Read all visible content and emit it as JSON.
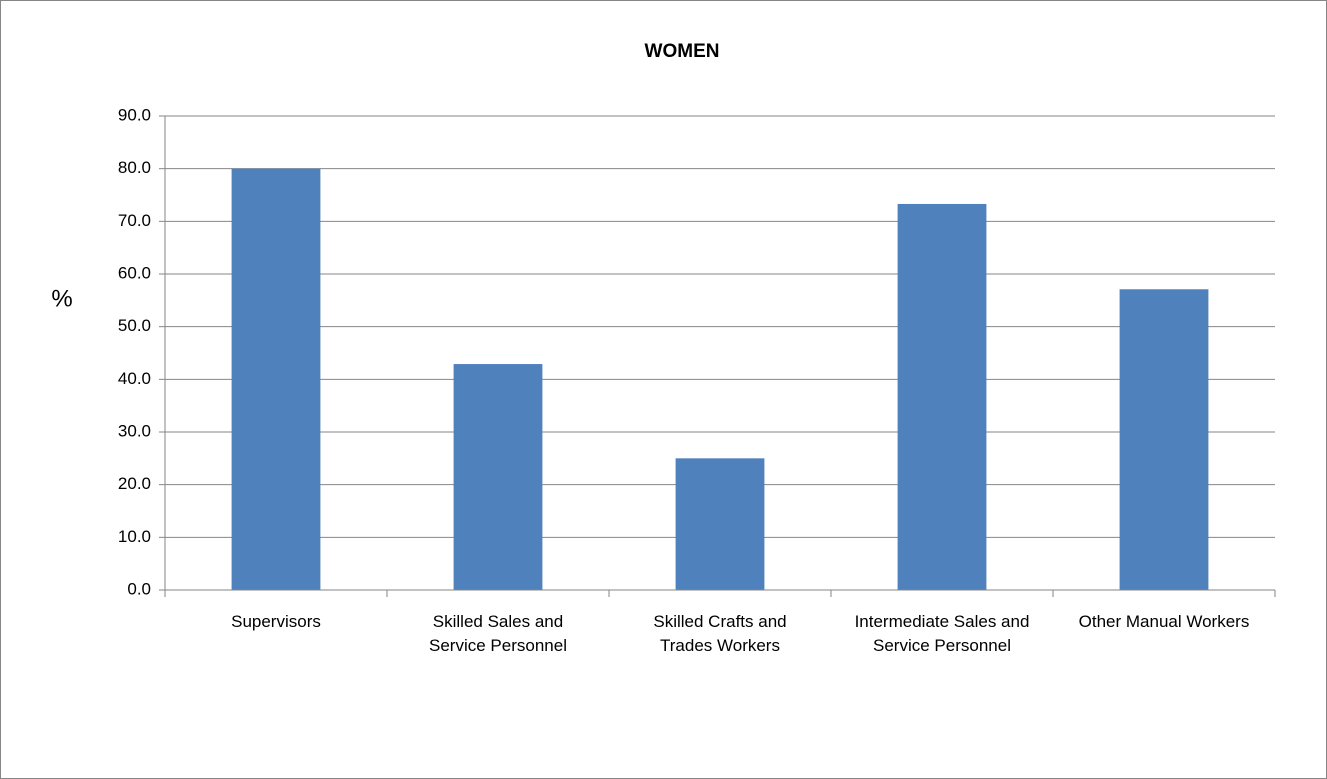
{
  "chart_data": {
    "type": "bar",
    "title": "WOMEN",
    "y_label": "%",
    "categories": [
      "Supervisors",
      "Skilled Sales and Service Personnel",
      "Skilled Crafts and Trades Workers",
      "Intermediate Sales and Service Personnel",
      "Other Manual Workers"
    ],
    "values": [
      80.0,
      42.9,
      25.0,
      73.3,
      57.1
    ],
    "color": "#4f81bd",
    "ylim": [
      0,
      90
    ],
    "yticks": [
      {
        "value": 0,
        "label": "0.0"
      },
      {
        "value": 10,
        "label": "10.0"
      },
      {
        "value": 20,
        "label": "20.0"
      },
      {
        "value": 30,
        "label": "30.0"
      },
      {
        "value": 40,
        "label": "40.0"
      },
      {
        "value": 50,
        "label": "50.0"
      },
      {
        "value": 60,
        "label": "60.0"
      },
      {
        "value": 70,
        "label": "70.0"
      },
      {
        "value": 80,
        "label": "80.0"
      },
      {
        "value": 90,
        "label": "90.0"
      }
    ],
    "grid": true
  }
}
